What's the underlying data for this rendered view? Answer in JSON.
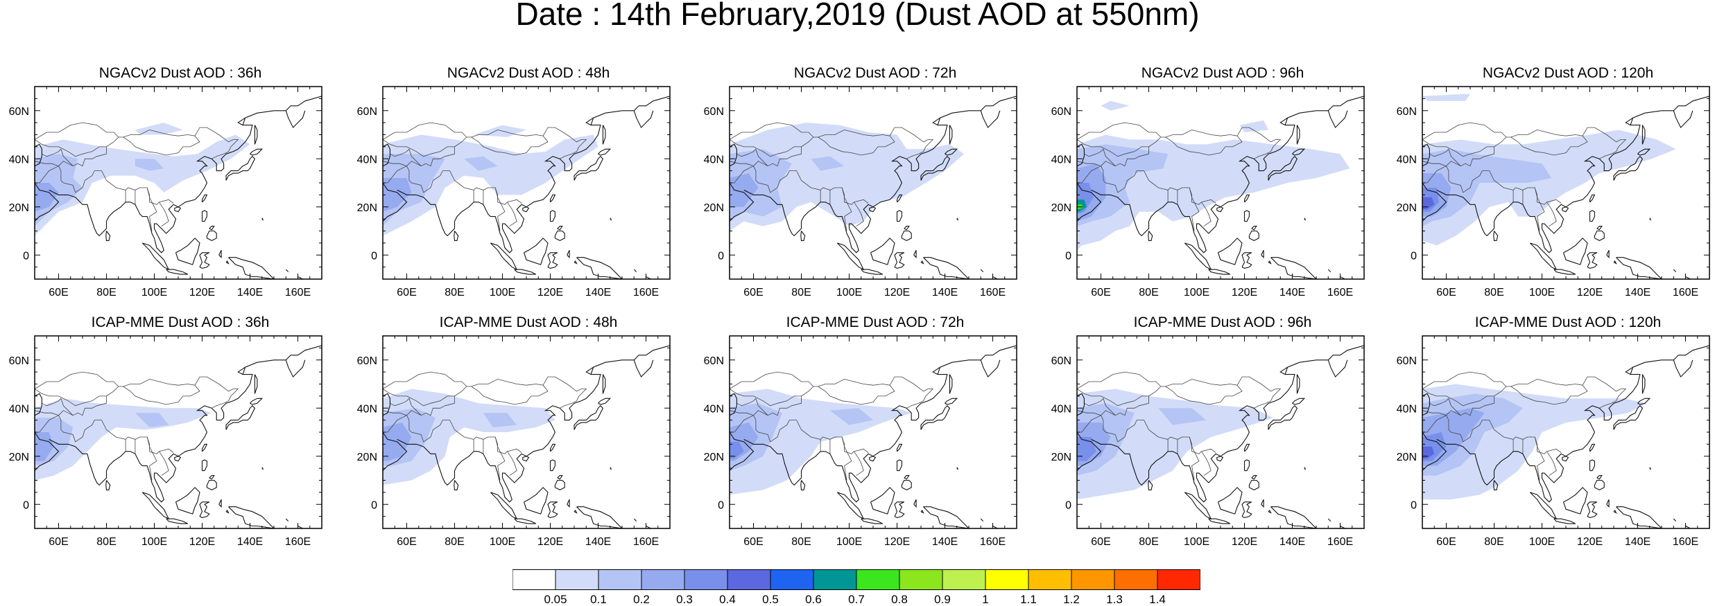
{
  "title": "Date : 14th February,2019 (Dust AOD at 550nm)",
  "map_axes": {
    "lat_ticks": [
      "60N",
      "40N",
      "20N",
      "0"
    ],
    "lon_ticks": [
      "60E",
      "80E",
      "100E",
      "120E",
      "140E",
      "160E"
    ],
    "lon_range": [
      50,
      170
    ],
    "lat_range": [
      -10,
      70
    ]
  },
  "panels": [
    {
      "title": "NGACv2 Dust AOD : 36h",
      "model": "NGACv2",
      "lead": 36
    },
    {
      "title": "NGACv2 Dust AOD : 48h",
      "model": "NGACv2",
      "lead": 48
    },
    {
      "title": "NGACv2 Dust AOD : 72h",
      "model": "NGACv2",
      "lead": 72
    },
    {
      "title": "NGACv2 Dust AOD : 96h",
      "model": "NGACv2",
      "lead": 96,
      "note": "peak near Arabian Sea ~20N/52E reaches 0.7-0.8 (teal/green)"
    },
    {
      "title": "NGACv2 Dust AOD : 120h",
      "model": "NGACv2",
      "lead": 120
    },
    {
      "title": "ICAP-MME Dust AOD : 36h",
      "model": "ICAP-MME",
      "lead": 36
    },
    {
      "title": "ICAP-MME Dust AOD : 48h",
      "model": "ICAP-MME",
      "lead": 48
    },
    {
      "title": "ICAP-MME Dust AOD : 72h",
      "model": "ICAP-MME",
      "lead": 72
    },
    {
      "title": "ICAP-MME Dust AOD : 96h",
      "model": "ICAP-MME",
      "lead": 96
    },
    {
      "title": "ICAP-MME Dust AOD : 120h",
      "model": "ICAP-MME",
      "lead": 120
    }
  ],
  "colorbar": {
    "labels": [
      "0.05",
      "0.1",
      "0.2",
      "0.3",
      "0.4",
      "0.5",
      "0.6",
      "0.7",
      "0.8",
      "0.9",
      "1",
      "1.1",
      "1.2",
      "1.3",
      "1.4"
    ],
    "colors": [
      "#ffffff",
      "#d2dcf8",
      "#b4c4f4",
      "#96aaef",
      "#7890ea",
      "#5b68df",
      "#1e64f0",
      "#009696",
      "#3ce61e",
      "#8ce61e",
      "#bef050",
      "#ffff00",
      "#ffbe00",
      "#ff9600",
      "#ff6e00",
      "#ff2800"
    ]
  },
  "shading": {
    "levels": [
      "#d2dcf8",
      "#b4c4f4",
      "#96aaef",
      "#7890ea",
      "#5b68df",
      "#009696",
      "#3ce61e"
    ]
  }
}
